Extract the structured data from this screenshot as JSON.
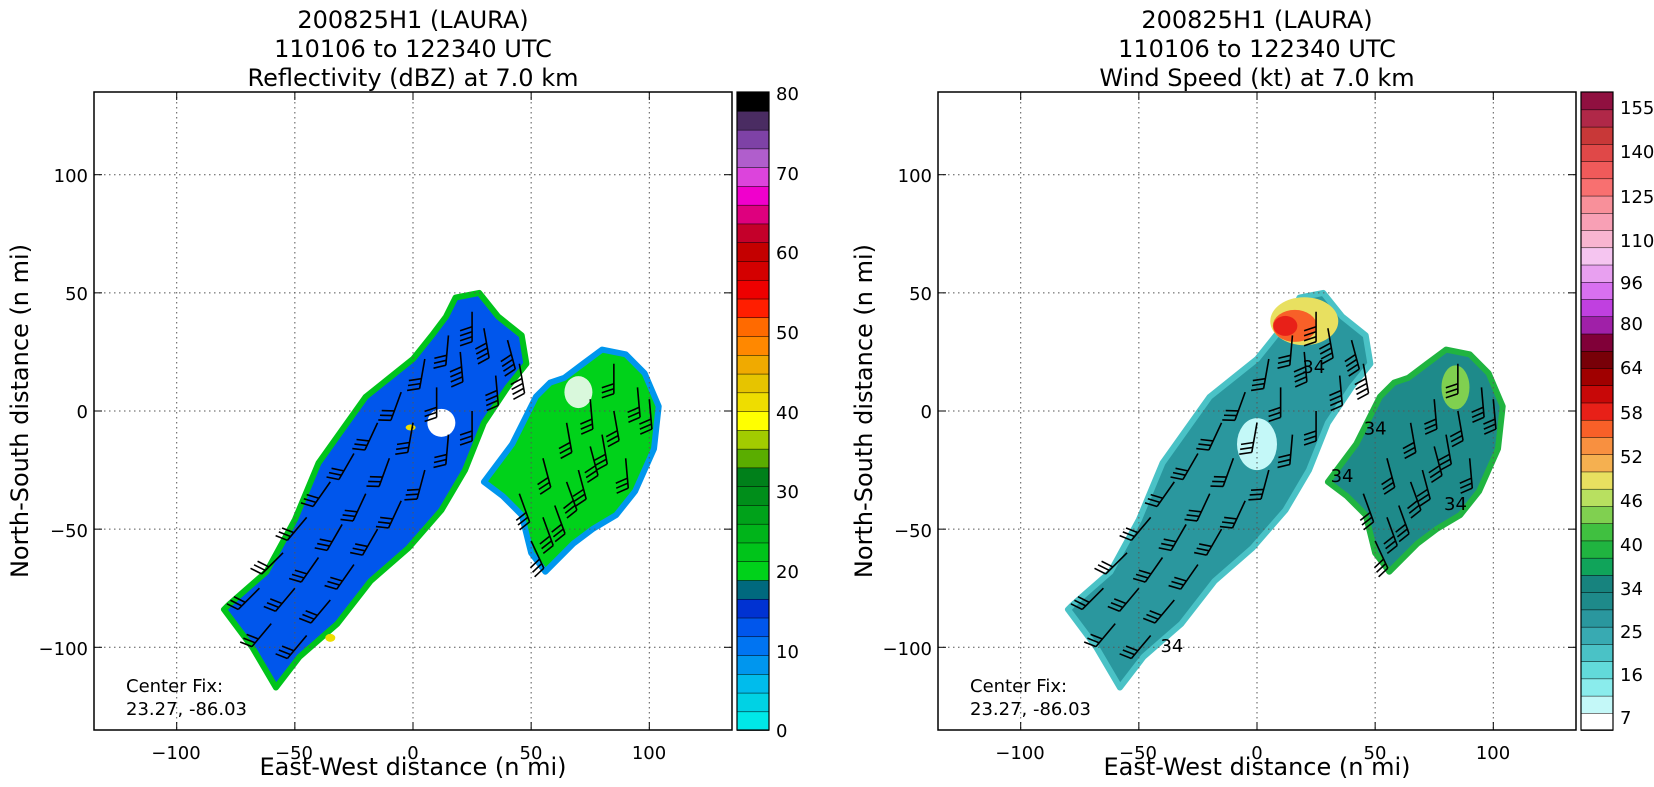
{
  "colors": {
    "refl_stops": [
      "#00e8e8",
      "#00d2e4",
      "#00bcec",
      "#0096ee",
      "#0074f2",
      "#0056ec",
      "#0032d2",
      "#00697e",
      "#00d21a",
      "#00c41a",
      "#00b41a",
      "#00a21a",
      "#008e1a",
      "#00801a",
      "#5aad00",
      "#a2cc00",
      "#ffff00",
      "#eedd00",
      "#e6c400",
      "#f0aa00",
      "#ff8800",
      "#ff6a00",
      "#ff1e00",
      "#ee0000",
      "#d40000",
      "#c40000",
      "#c4002a",
      "#de007e",
      "#f000cc",
      "#dc44dc",
      "#b05ecc",
      "#7e42a6",
      "#4a2c62",
      "#000000"
    ],
    "wind_stops": [
      "#ffffff",
      "#c4f8f8",
      "#8aecec",
      "#62dada",
      "#4ac2c6",
      "#38aab2",
      "#2a979e",
      "#1e8a8a",
      "#17837e",
      "#10a45a",
      "#20b440",
      "#40c040",
      "#80d050",
      "#b8e060",
      "#e8e060",
      "#f5b050",
      "#f89040",
      "#f86028",
      "#e82018",
      "#c80808",
      "#a00000",
      "#780008",
      "#800038",
      "#a020a8",
      "#c040e0",
      "#d870f0",
      "#e8a0f0",
      "#f5c5f0",
      "#f8b5d0",
      "#f8a0b5",
      "#f8909a",
      "#f87070",
      "#f05a5a",
      "#e04848",
      "#c83838",
      "#b02848",
      "#901040"
    ],
    "accent": "#000000"
  },
  "charts": [
    {
      "title_lines": [
        "200825H1 (LAURA)",
        "110106 to 122340 UTC",
        "Reflectivity (dBZ) at 7.0 km"
      ],
      "xlabel": "East-West distance (n mi)",
      "ylabel": "North-South distance (n mi)",
      "center_fix": [
        "Center Fix:",
        "23.27, -86.03"
      ],
      "x_ticks": [
        "−100",
        "−50",
        "0",
        "50",
        "100"
      ],
      "y_ticks": [
        "100",
        "50",
        "0",
        "−50",
        "−100"
      ],
      "colorbar_ticks": [
        "80",
        "70",
        "60",
        "50",
        "40",
        "30",
        "20",
        "10",
        "0"
      ]
    },
    {
      "title_lines": [
        "200825H1 (LAURA)",
        "110106 to 122340 UTC",
        "Wind Speed (kt) at 7.0 km"
      ],
      "xlabel": "East-West distance (n mi)",
      "ylabel": "North-South distance (n mi)",
      "center_fix": [
        "Center Fix:",
        "23.27, -86.03"
      ],
      "x_ticks": [
        "−100",
        "−50",
        "0",
        "50",
        "100"
      ],
      "y_ticks": [
        "100",
        "50",
        "0",
        "−50",
        "−100"
      ],
      "colorbar_ticks": [
        "155",
        "140",
        "125",
        "110",
        "96",
        "80",
        "64",
        "58",
        "52",
        "46",
        "40",
        "34",
        "25",
        "16",
        "7"
      ],
      "contour_labels": [
        "34",
        "34",
        "34",
        "34",
        "34"
      ]
    }
  ],
  "chart_data": [
    {
      "type": "heatmap",
      "variable": "Reflectivity (dBZ)",
      "xlim": [
        -135,
        135
      ],
      "ylim": [
        -135,
        135
      ],
      "grid": true,
      "colorbar": {
        "min": 0,
        "max": 80,
        "step": 2.5,
        "labeled_ticks": [
          0,
          10,
          20,
          30,
          40,
          50,
          60,
          70,
          80
        ]
      },
      "regions": [
        {
          "name": "southwest band",
          "polygon": [
            [
              -78,
              -82
            ],
            [
              -62,
              -68
            ],
            [
              -50,
              -46
            ],
            [
              -40,
              -22
            ],
            [
              -30,
              -8
            ],
            [
              -20,
              6
            ],
            [
              -10,
              14
            ],
            [
              0,
              22
            ],
            [
              8,
              32
            ],
            [
              14,
              40
            ],
            [
              18,
              48
            ],
            [
              28,
              50
            ],
            [
              36,
              40
            ],
            [
              46,
              32
            ],
            [
              48,
              20
            ],
            [
              40,
              10
            ],
            [
              30,
              -5
            ],
            [
              22,
              -25
            ],
            [
              12,
              -42
            ],
            [
              -2,
              -58
            ],
            [
              -18,
              -72
            ],
            [
              -32,
              -90
            ],
            [
              -48,
              -104
            ],
            [
              -58,
              -117
            ],
            [
              -68,
              -100
            ],
            [
              -80,
              -84
            ]
          ]
        },
        {
          "name": "eastern band",
          "polygon": [
            [
              30,
              -30
            ],
            [
              42,
              -14
            ],
            [
              52,
              6
            ],
            [
              58,
              12
            ],
            [
              64,
              14
            ],
            [
              72,
              20
            ],
            [
              80,
              26
            ],
            [
              90,
              24
            ],
            [
              98,
              16
            ],
            [
              104,
              2
            ],
            [
              102,
              -16
            ],
            [
              94,
              -34
            ],
            [
              86,
              -44
            ],
            [
              76,
              -50
            ],
            [
              68,
              -56
            ],
            [
              56,
              -68
            ],
            [
              50,
              -60
            ],
            [
              46,
              -44
            ],
            [
              38,
              -36
            ]
          ]
        }
      ],
      "eye": [
        12,
        -5
      ],
      "wind_barbs": [
        [
          -60,
          -90,
          220,
          30
        ],
        [
          -50,
          -75,
          220,
          30
        ],
        [
          -40,
          -62,
          215,
          30
        ],
        [
          -30,
          -48,
          210,
          30
        ],
        [
          -20,
          -35,
          205,
          30
        ],
        [
          -10,
          -20,
          200,
          30
        ],
        [
          0,
          -5,
          190,
          30
        ],
        [
          10,
          10,
          180,
          30
        ],
        [
          20,
          25,
          175,
          35
        ],
        [
          30,
          35,
          170,
          35
        ],
        [
          40,
          30,
          165,
          35
        ],
        [
          -45,
          -95,
          220,
          25
        ],
        [
          -35,
          -80,
          220,
          25
        ],
        [
          -25,
          -65,
          215,
          25
        ],
        [
          -15,
          -50,
          210,
          25
        ],
        [
          -5,
          -38,
          205,
          25
        ],
        [
          5,
          -25,
          195,
          30
        ],
        [
          15,
          -10,
          185,
          30
        ],
        [
          25,
          0,
          180,
          30
        ],
        [
          35,
          15,
          175,
          35
        ],
        [
          45,
          20,
          170,
          35
        ],
        [
          -55,
          -60,
          225,
          25
        ],
        [
          -45,
          -45,
          220,
          25
        ],
        [
          -35,
          -30,
          215,
          25
        ],
        [
          -25,
          -18,
          210,
          25
        ],
        [
          -15,
          -5,
          205,
          25
        ],
        [
          -5,
          8,
          200,
          25
        ],
        [
          5,
          22,
          190,
          30
        ],
        [
          15,
          32,
          185,
          30
        ],
        [
          25,
          42,
          180,
          35
        ],
        [
          -65,
          -75,
          225,
          25
        ],
        [
          55,
          -45,
          160,
          30
        ],
        [
          65,
          -30,
          160,
          30
        ],
        [
          75,
          -15,
          165,
          30
        ],
        [
          85,
          0,
          170,
          30
        ],
        [
          95,
          10,
          175,
          30
        ],
        [
          45,
          -35,
          160,
          25
        ],
        [
          55,
          -20,
          165,
          25
        ],
        [
          65,
          -5,
          170,
          25
        ],
        [
          75,
          5,
          175,
          25
        ],
        [
          85,
          20,
          180,
          30
        ],
        [
          50,
          -55,
          155,
          25
        ],
        [
          60,
          -40,
          160,
          25
        ],
        [
          70,
          -25,
          165,
          25
        ],
        [
          80,
          -10,
          170,
          25
        ],
        [
          90,
          -20,
          175,
          30
        ],
        [
          100,
          5,
          175,
          30
        ]
      ]
    },
    {
      "type": "heatmap",
      "variable": "Wind Speed (kt)",
      "xlim": [
        -135,
        135
      ],
      "ylim": [
        -135,
        135
      ],
      "grid": true,
      "colorbar": {
        "bounds": [
          7,
          10,
          13,
          16,
          19,
          22,
          25,
          28,
          31,
          34,
          37,
          40,
          43,
          46,
          49,
          52,
          55,
          58,
          61,
          64,
          72,
          80,
          88,
          96,
          103,
          110,
          117,
          125,
          132,
          140,
          147,
          155,
          163
        ],
        "labeled_ticks": [
          7,
          16,
          25,
          34,
          40,
          46,
          52,
          58,
          64,
          80,
          96,
          110,
          125,
          140,
          155
        ]
      },
      "regions": [
        {
          "name": "southwest band",
          "polygon": [
            [
              -78,
              -82
            ],
            [
              -62,
              -68
            ],
            [
              -50,
              -46
            ],
            [
              -40,
              -22
            ],
            [
              -30,
              -8
            ],
            [
              -20,
              6
            ],
            [
              -10,
              14
            ],
            [
              0,
              22
            ],
            [
              8,
              32
            ],
            [
              14,
              40
            ],
            [
              18,
              48
            ],
            [
              28,
              50
            ],
            [
              36,
              40
            ],
            [
              46,
              32
            ],
            [
              48,
              20
            ],
            [
              40,
              10
            ],
            [
              30,
              -5
            ],
            [
              22,
              -25
            ],
            [
              12,
              -42
            ],
            [
              -2,
              -58
            ],
            [
              -18,
              -72
            ],
            [
              -32,
              -90
            ],
            [
              -48,
              -104
            ],
            [
              -58,
              -117
            ],
            [
              -68,
              -100
            ],
            [
              -80,
              -84
            ]
          ]
        },
        {
          "name": "eastern band",
          "polygon": [
            [
              30,
              -30
            ],
            [
              42,
              -14
            ],
            [
              52,
              6
            ],
            [
              58,
              12
            ],
            [
              64,
              14
            ],
            [
              72,
              20
            ],
            [
              80,
              26
            ],
            [
              90,
              24
            ],
            [
              98,
              16
            ],
            [
              104,
              2
            ],
            [
              102,
              -16
            ],
            [
              94,
              -34
            ],
            [
              86,
              -44
            ],
            [
              76,
              -50
            ],
            [
              68,
              -56
            ],
            [
              56,
              -68
            ],
            [
              50,
              -60
            ],
            [
              46,
              -44
            ],
            [
              38,
              -36
            ]
          ]
        }
      ],
      "wind_max_region": [
        12,
        32
      ],
      "contour_34kt_label_positions": [
        [
          24,
          16
        ],
        [
          36,
          -30
        ],
        [
          50,
          -10
        ],
        [
          84,
          -42
        ],
        [
          -36,
          -102
        ]
      ],
      "wind_barbs": [
        [
          -60,
          -90,
          220,
          30
        ],
        [
          -50,
          -75,
          220,
          30
        ],
        [
          -40,
          -62,
          215,
          30
        ],
        [
          -30,
          -48,
          210,
          30
        ],
        [
          -20,
          -35,
          205,
          30
        ],
        [
          -10,
          -20,
          200,
          30
        ],
        [
          0,
          -5,
          190,
          30
        ],
        [
          10,
          10,
          180,
          30
        ],
        [
          20,
          25,
          175,
          35
        ],
        [
          30,
          35,
          170,
          35
        ],
        [
          40,
          30,
          165,
          35
        ],
        [
          -45,
          -95,
          220,
          25
        ],
        [
          -35,
          -80,
          220,
          25
        ],
        [
          -25,
          -65,
          215,
          25
        ],
        [
          -15,
          -50,
          210,
          25
        ],
        [
          -5,
          -38,
          205,
          25
        ],
        [
          5,
          -25,
          195,
          30
        ],
        [
          15,
          -10,
          185,
          30
        ],
        [
          25,
          0,
          180,
          30
        ],
        [
          35,
          15,
          175,
          35
        ],
        [
          45,
          20,
          170,
          35
        ],
        [
          -55,
          -60,
          225,
          25
        ],
        [
          -45,
          -45,
          220,
          25
        ],
        [
          -35,
          -30,
          215,
          25
        ],
        [
          -25,
          -18,
          210,
          25
        ],
        [
          -15,
          -5,
          205,
          25
        ],
        [
          -5,
          8,
          200,
          25
        ],
        [
          5,
          22,
          190,
          30
        ],
        [
          15,
          32,
          185,
          30
        ],
        [
          25,
          42,
          180,
          35
        ],
        [
          -65,
          -75,
          225,
          25
        ],
        [
          55,
          -45,
          160,
          30
        ],
        [
          65,
          -30,
          160,
          30
        ],
        [
          75,
          -15,
          165,
          30
        ],
        [
          85,
          0,
          170,
          30
        ],
        [
          95,
          10,
          175,
          30
        ],
        [
          45,
          -35,
          160,
          25
        ],
        [
          55,
          -20,
          165,
          25
        ],
        [
          65,
          -5,
          170,
          25
        ],
        [
          75,
          5,
          175,
          25
        ],
        [
          85,
          20,
          180,
          30
        ],
        [
          50,
          -55,
          155,
          25
        ],
        [
          60,
          -40,
          160,
          25
        ],
        [
          70,
          -25,
          165,
          25
        ],
        [
          80,
          -10,
          170,
          25
        ],
        [
          90,
          -20,
          175,
          30
        ],
        [
          100,
          5,
          175,
          30
        ]
      ]
    }
  ]
}
